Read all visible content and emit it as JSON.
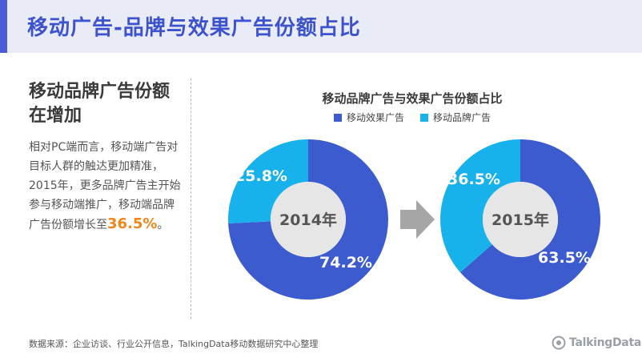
{
  "header": {
    "title": "移动广告-品牌与效果广告份额占比"
  },
  "left": {
    "heading": "移动品牌广告份额在增加",
    "body_text": "相对PC端而言，移动端广告对目标人群的触达更加精准，2015年，更多品牌广告主开始参与移动端推广，移动端品牌广告份额增长至",
    "highlight": "36.5%",
    "body_end": "。"
  },
  "source": "数据来源：企业访谈、行业公开信息，TalkingData移动数据研究中心整理",
  "logo": {
    "text": "TalkingData",
    "icon": "talkingdata-logo-icon"
  },
  "arrow_icon": "arrow-right-icon",
  "colors": {
    "accent": "#3d52cf",
    "performance": "#3b5bcf",
    "brand": "#17b1ec",
    "highlight": "#f0861c"
  },
  "chart_data": {
    "type": "pie",
    "title": "移动品牌广告与效果广告份额占比",
    "legend_position": "top",
    "series_names": [
      "移动效果广告",
      "移动品牌广告"
    ],
    "charts": [
      {
        "label": "2014年",
        "values": [
          74.2,
          25.8
        ],
        "value_labels": [
          "74.2%",
          "25.8%"
        ]
      },
      {
        "label": "2015年",
        "values": [
          63.5,
          36.5
        ],
        "value_labels": [
          "63.5%",
          "36.5%"
        ]
      }
    ]
  }
}
